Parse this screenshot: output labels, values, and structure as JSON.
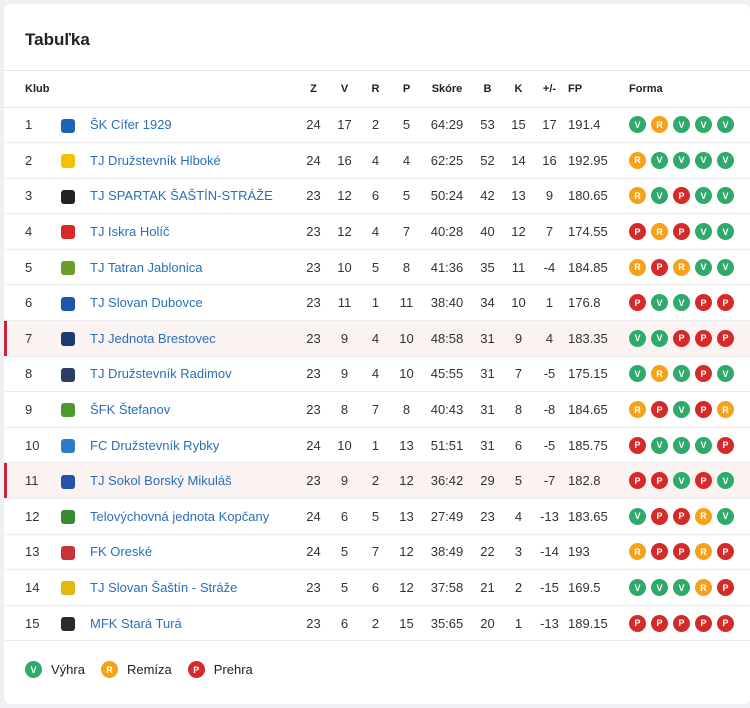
{
  "title": "Tabuľka",
  "headers": {
    "club": "Klub",
    "z": "Z",
    "v": "V",
    "r": "R",
    "p": "P",
    "score": "Skóre",
    "b": "B",
    "k": "K",
    "pm": "+/-",
    "fp": "FP",
    "form": "Forma"
  },
  "rows": [
    {
      "rank": "1",
      "club": "ŠK Cífer 1929",
      "crest_color": "#1f63b6",
      "z": "24",
      "v": "17",
      "r": "2",
      "p": "5",
      "score": "64:29",
      "b": "53",
      "k": "15",
      "pm": "17",
      "fp": "191.4",
      "form": [
        "V",
        "R",
        "V",
        "V",
        "V"
      ]
    },
    {
      "rank": "2",
      "club": "TJ Družstevník Hlboké",
      "crest_color": "#f2c200",
      "z": "24",
      "v": "16",
      "r": "4",
      "p": "4",
      "score": "62:25",
      "b": "52",
      "k": "14",
      "pm": "16",
      "fp": "192.95",
      "form": [
        "R",
        "V",
        "V",
        "V",
        "V"
      ]
    },
    {
      "rank": "3",
      "club": "TJ SPARTAK ŠAŠTÍN-STRÁŽE",
      "crest_color": "#222222",
      "z": "23",
      "v": "12",
      "r": "6",
      "p": "5",
      "score": "50:24",
      "b": "42",
      "k": "13",
      "pm": "9",
      "fp": "180.65",
      "form": [
        "R",
        "V",
        "P",
        "V",
        "V"
      ]
    },
    {
      "rank": "4",
      "club": "TJ Iskra Holíč",
      "crest_color": "#d92a2a",
      "z": "23",
      "v": "12",
      "r": "4",
      "p": "7",
      "score": "40:28",
      "b": "40",
      "k": "12",
      "pm": "7",
      "fp": "174.55",
      "form": [
        "P",
        "R",
        "P",
        "V",
        "V"
      ]
    },
    {
      "rank": "5",
      "club": "TJ Tatran Jablonica",
      "crest_color": "#6a9e2a",
      "z": "23",
      "v": "10",
      "r": "5",
      "p": "8",
      "score": "41:36",
      "b": "35",
      "k": "11",
      "pm": "-4",
      "fp": "184.85",
      "form": [
        "R",
        "P",
        "R",
        "V",
        "V"
      ]
    },
    {
      "rank": "6",
      "club": "TJ Slovan Dubovce",
      "crest_color": "#1d58a8",
      "z": "23",
      "v": "11",
      "r": "1",
      "p": "11",
      "score": "38:40",
      "b": "34",
      "k": "10",
      "pm": "1",
      "fp": "176.8",
      "form": [
        "P",
        "V",
        "V",
        "P",
        "P"
      ]
    },
    {
      "rank": "7",
      "club": "TJ Jednota Brestovec",
      "crest_color": "#1f3a6e",
      "z": "23",
      "v": "9",
      "r": "4",
      "p": "10",
      "score": "48:58",
      "b": "31",
      "k": "9",
      "pm": "4",
      "fp": "183.35",
      "form": [
        "V",
        "V",
        "P",
        "P",
        "P"
      ],
      "highlight": true
    },
    {
      "rank": "8",
      "club": "TJ Družstevník Radimov",
      "crest_color": "#2c3e68",
      "z": "23",
      "v": "9",
      "r": "4",
      "p": "10",
      "score": "45:55",
      "b": "31",
      "k": "7",
      "pm": "-5",
      "fp": "175.15",
      "form": [
        "V",
        "R",
        "V",
        "P",
        "V"
      ]
    },
    {
      "rank": "9",
      "club": "ŠFK Štefanov",
      "crest_color": "#4f9a2e",
      "z": "23",
      "v": "8",
      "r": "7",
      "p": "8",
      "score": "40:43",
      "b": "31",
      "k": "8",
      "pm": "-8",
      "fp": "184.65",
      "form": [
        "R",
        "P",
        "V",
        "P",
        "R"
      ]
    },
    {
      "rank": "10",
      "club": "FC Družstevník Rybky",
      "crest_color": "#2a7cc8",
      "z": "24",
      "v": "10",
      "r": "1",
      "p": "13",
      "score": "51:51",
      "b": "31",
      "k": "6",
      "pm": "-5",
      "fp": "185.75",
      "form": [
        "P",
        "V",
        "V",
        "V",
        "P"
      ]
    },
    {
      "rank": "11",
      "club": "TJ Sokol Borský Mikuláš",
      "crest_color": "#2452a8",
      "z": "23",
      "v": "9",
      "r": "2",
      "p": "12",
      "score": "36:42",
      "b": "29",
      "k": "5",
      "pm": "-7",
      "fp": "182.8",
      "form": [
        "P",
        "P",
        "V",
        "P",
        "V"
      ],
      "highlight": true
    },
    {
      "rank": "12",
      "club": "Telovýchovná jednota Kopčany",
      "crest_color": "#3a8a34",
      "z": "24",
      "v": "6",
      "r": "5",
      "p": "13",
      "score": "27:49",
      "b": "23",
      "k": "4",
      "pm": "-13",
      "fp": "183.65",
      "form": [
        "V",
        "P",
        "P",
        "R",
        "V"
      ]
    },
    {
      "rank": "13",
      "club": "FK Oreské",
      "crest_color": "#c8323a",
      "z": "24",
      "v": "5",
      "r": "7",
      "p": "12",
      "score": "38:49",
      "b": "22",
      "k": "3",
      "pm": "-14",
      "fp": "193",
      "form": [
        "R",
        "P",
        "P",
        "R",
        "P"
      ]
    },
    {
      "rank": "14",
      "club": "TJ Slovan Šaštín - Stráže",
      "crest_color": "#e0b810",
      "z": "23",
      "v": "5",
      "r": "6",
      "p": "12",
      "score": "37:58",
      "b": "21",
      "k": "2",
      "pm": "-15",
      "fp": "169.5",
      "form": [
        "V",
        "V",
        "V",
        "R",
        "P"
      ]
    },
    {
      "rank": "15",
      "club": "MFK Stará Turá",
      "crest_color": "#2b2b2b",
      "z": "23",
      "v": "6",
      "r": "2",
      "p": "15",
      "score": "35:65",
      "b": "20",
      "k": "1",
      "pm": "-13",
      "fp": "189.15",
      "form": [
        "P",
        "P",
        "P",
        "P",
        "P"
      ]
    }
  ],
  "legend": [
    {
      "code": "V",
      "label": "Výhra"
    },
    {
      "code": "R",
      "label": "Remíza"
    },
    {
      "code": "P",
      "label": "Prehra"
    }
  ],
  "colors": {
    "win": "#2eaa6b",
    "draw": "#f5a21a",
    "loss": "#d32a2a",
    "link": "#2a6fba",
    "highlight_bar": "#c8233a"
  }
}
